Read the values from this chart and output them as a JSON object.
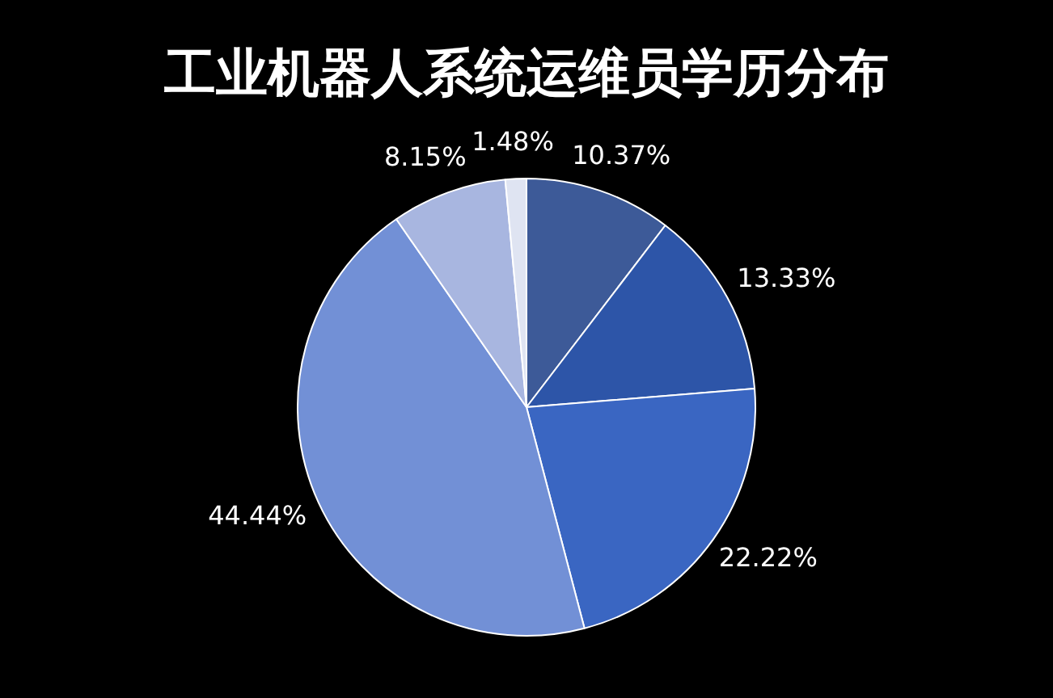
{
  "chart_data": {
    "type": "pie",
    "title": "工业机器人系统运维员学历分布",
    "categories": [
      null,
      null,
      null,
      null,
      null,
      null
    ],
    "values": [
      10.37,
      13.33,
      22.22,
      44.44,
      8.15,
      1.48
    ],
    "value_labels": [
      "10.37%",
      "13.33%",
      "22.22%",
      "44.44%",
      "8.15%",
      "1.48%"
    ],
    "colors": [
      "#3d5a98",
      "#2d55a8",
      "#3a66c2",
      "#7290d6",
      "#a8b6e0",
      "#dfe4f2"
    ],
    "legend": false
  }
}
